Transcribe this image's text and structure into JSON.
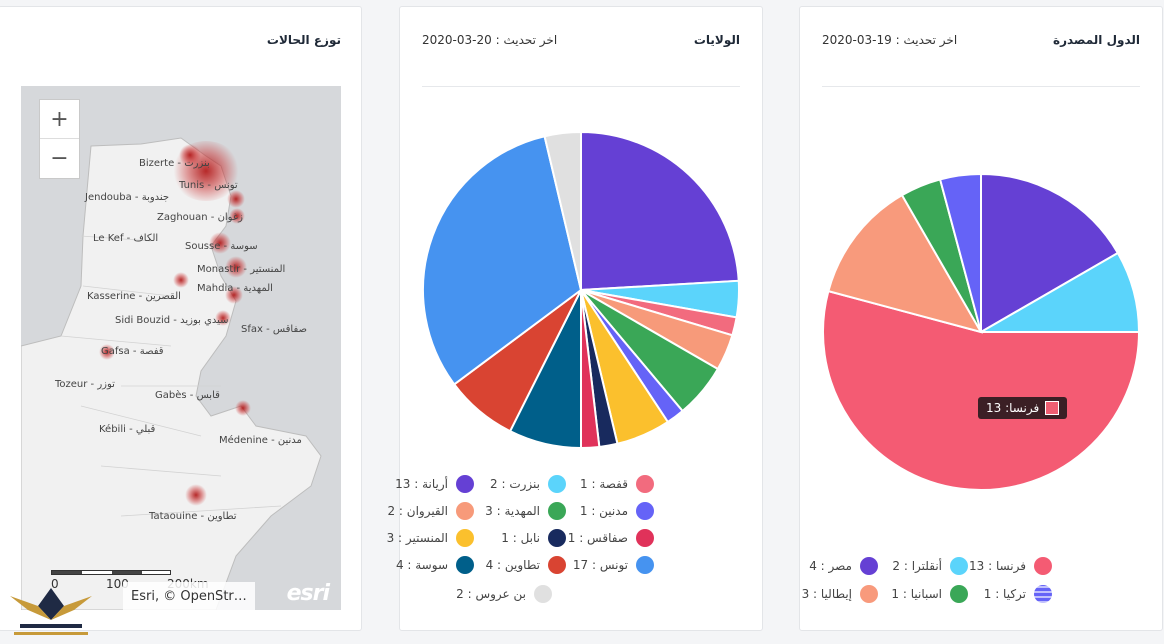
{
  "map_card": {
    "title": "توزع الحالات",
    "zoom_in": "+",
    "zoom_out": "−",
    "cities": [
      {
        "label": "Bizerte - بنزرت"
      },
      {
        "label": "Tunis - تونس"
      },
      {
        "label": "Jendouba - جندوبة"
      },
      {
        "label": "Zaghouan - زغوان"
      },
      {
        "label": "Le Kef - الكاف"
      },
      {
        "label": "Sousse - سوسة"
      },
      {
        "label": "Monastir - المنستير"
      },
      {
        "label": "Mahdia - المهدية"
      },
      {
        "label": "Kasserine - القصرين"
      },
      {
        "label": "Sidi Bouzid - سيدي بوزيد"
      },
      {
        "label": "Sfax - صفاقس"
      },
      {
        "label": "Gafsa - قفصة"
      },
      {
        "label": "Tozeur - توزر"
      },
      {
        "label": "Gabès - قابس"
      },
      {
        "label": "Kébili - قبلي"
      },
      {
        "label": "Médenine - مدنين"
      },
      {
        "label": "Tataouine - تطاوين"
      }
    ],
    "scale_labels": [
      "0",
      "100",
      "200km"
    ],
    "attribution": "Esri, © OpenStr…",
    "esri_logo": "esri"
  },
  "states_card": {
    "title": "الولايات",
    "updated": "اخر تحديث : 20-03-2020",
    "legend": [
      {
        "label": "أريانة : 13",
        "color": "#6540d4"
      },
      {
        "label": "بنزرت : 2",
        "color": "#5bd4fb"
      },
      {
        "label": "قفصة : 1",
        "color": "#f26b7e"
      },
      {
        "label": "القيروان : 2",
        "color": "#f79a7a"
      },
      {
        "label": "المهدية : 3",
        "color": "#3aa757"
      },
      {
        "label": "مدنين : 1",
        "color": "#6563f7"
      },
      {
        "label": "المنستير : 3",
        "color": "#fbc02d"
      },
      {
        "label": "نابل : 1",
        "color": "#182a5e"
      },
      {
        "label": "صفاقس : 1",
        "color": "#e0325a"
      },
      {
        "label": "سوسة : 4",
        "color": "#005f8a"
      },
      {
        "label": "تطاوين : 4",
        "color": "#d94432"
      },
      {
        "label": "تونس : 17",
        "color": "#4693f0"
      },
      {
        "label": "بن عروس : 2",
        "color": "#e0e0e0"
      }
    ]
  },
  "countries_card": {
    "title": "الدول المصدرة",
    "updated": "اخر تحديث : 19-03-2020",
    "legend": [
      {
        "label": "مصر : 4",
        "color": "#6540d4"
      },
      {
        "label": "أنقلترا : 2",
        "color": "#5bd4fb"
      },
      {
        "label": "فرنسا : 13",
        "color": "#f45b73"
      },
      {
        "label": "إيطاليا : 3",
        "color": "#f89a7c"
      },
      {
        "label": "اسبانيا : 1",
        "color": "#3aa757"
      },
      {
        "label": "تركيا : 1",
        "color": "#6563f7"
      }
    ],
    "tooltip": "فرنسا: 13"
  },
  "chart_data": [
    {
      "type": "pie",
      "title": "الولايات",
      "categories": [
        "أريانة",
        "بنزرت",
        "قفصة",
        "القيروان",
        "المهدية",
        "مدنين",
        "المنستير",
        "نابل",
        "صفاقس",
        "سوسة",
        "تطاوين",
        "تونس",
        "بن عروس"
      ],
      "values": [
        13,
        2,
        1,
        2,
        3,
        1,
        3,
        1,
        1,
        4,
        4,
        17,
        2
      ],
      "colors": [
        "#6540d4",
        "#5bd4fb",
        "#f26b7e",
        "#f79a7a",
        "#3aa757",
        "#6563f7",
        "#fbc02d",
        "#182a5e",
        "#e0325a",
        "#005f8a",
        "#d94432",
        "#4693f0",
        "#e0e0e0"
      ],
      "legend_position": "bottom"
    },
    {
      "type": "pie",
      "title": "الدول المصدرة",
      "categories": [
        "مصر",
        "أنقلترا",
        "فرنسا",
        "إيطاليا",
        "اسبانيا",
        "تركيا"
      ],
      "values": [
        4,
        2,
        13,
        3,
        1,
        1
      ],
      "colors": [
        "#6540d4",
        "#5bd4fb",
        "#f45b73",
        "#f89a7c",
        "#3aa757",
        "#6563f7"
      ],
      "legend_position": "bottom"
    }
  ]
}
